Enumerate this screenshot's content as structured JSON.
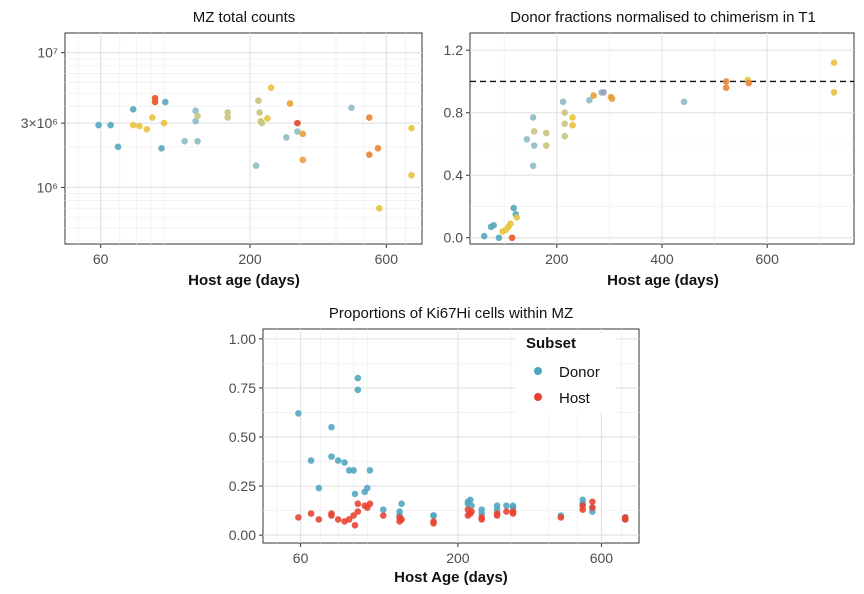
{
  "chart_data": [
    {
      "id": "mz",
      "type": "scatter",
      "title": "MZ total counts",
      "xlabel": "Host age (days)",
      "ylabel": "",
      "x_scale": "log",
      "y_scale": "log",
      "xlim": [
        45,
        800
      ],
      "ylim": [
        380000,
        14000000
      ],
      "xticks": [
        60,
        200,
        600
      ],
      "xtick_labels": [
        "60",
        "200",
        "600"
      ],
      "yticks": [
        1000000,
        3000000,
        10000000
      ],
      "ytick_labels": [
        "10⁶",
        "3×10⁶",
        "10⁷"
      ],
      "points": [
        {
          "x": 59,
          "y": 2900000,
          "c": "#5aa9bd"
        },
        {
          "x": 65,
          "y": 2900000,
          "c": "#5aa9bd"
        },
        {
          "x": 69,
          "y": 2000000,
          "c": "#5aa9bd"
        },
        {
          "x": 78,
          "y": 3800000,
          "c": "#5aa9bd"
        },
        {
          "x": 78,
          "y": 2900000,
          "c": "#e8c441"
        },
        {
          "x": 82,
          "y": 2850000,
          "c": "#e8c441"
        },
        {
          "x": 87,
          "y": 2700000,
          "c": "#e8c441"
        },
        {
          "x": 91,
          "y": 3300000,
          "c": "#e8c441"
        },
        {
          "x": 93,
          "y": 4300000,
          "c": "#e85a2e"
        },
        {
          "x": 93,
          "y": 4600000,
          "c": "#e85a2e"
        },
        {
          "x": 98,
          "y": 1950000,
          "c": "#5aa9bd"
        },
        {
          "x": 100,
          "y": 3000000,
          "c": "#e8c441"
        },
        {
          "x": 101,
          "y": 4300000,
          "c": "#5aa9bd"
        },
        {
          "x": 118,
          "y": 2200000,
          "c": "#8fbec3"
        },
        {
          "x": 129,
          "y": 3700000,
          "c": "#8fbec3"
        },
        {
          "x": 129,
          "y": 3100000,
          "c": "#8fbec3"
        },
        {
          "x": 131,
          "y": 3400000,
          "c": "#c9c681"
        },
        {
          "x": 131,
          "y": 2200000,
          "c": "#8fbec3"
        },
        {
          "x": 167,
          "y": 3600000,
          "c": "#c9c681"
        },
        {
          "x": 167,
          "y": 3300000,
          "c": "#c9c681"
        },
        {
          "x": 210,
          "y": 1450000,
          "c": "#8fbec3"
        },
        {
          "x": 214,
          "y": 4400000,
          "c": "#c9c681"
        },
        {
          "x": 216,
          "y": 3600000,
          "c": "#c9c681"
        },
        {
          "x": 218,
          "y": 3100000,
          "c": "#c9c681"
        },
        {
          "x": 220,
          "y": 3000000,
          "c": "#c9c681"
        },
        {
          "x": 230,
          "y": 3250000,
          "c": "#e8c441"
        },
        {
          "x": 237,
          "y": 5500000,
          "c": "#e8c441"
        },
        {
          "x": 268,
          "y": 2350000,
          "c": "#8fbec3"
        },
        {
          "x": 276,
          "y": 4200000,
          "c": "#e8a23a"
        },
        {
          "x": 293,
          "y": 2600000,
          "c": "#8fbec3"
        },
        {
          "x": 293,
          "y": 3000000,
          "c": "#e04b2a"
        },
        {
          "x": 306,
          "y": 1600000,
          "c": "#e8a23a"
        },
        {
          "x": 306,
          "y": 2500000,
          "c": "#e8a23a"
        },
        {
          "x": 453,
          "y": 3900000,
          "c": "#8fbec3"
        },
        {
          "x": 523,
          "y": 3300000,
          "c": "#e8883a"
        },
        {
          "x": 523,
          "y": 1750000,
          "c": "#e8883a"
        },
        {
          "x": 561,
          "y": 1950000,
          "c": "#e8883a"
        },
        {
          "x": 567,
          "y": 700000,
          "c": "#e8c441"
        },
        {
          "x": 735,
          "y": 2750000,
          "c": "#e8c441"
        },
        {
          "x": 735,
          "y": 1230000,
          "c": "#e8c441"
        }
      ]
    },
    {
      "id": "donor",
      "type": "scatter",
      "title": "Donor fractions normalised to chimerism in T1",
      "xlabel": "Host age (days)",
      "ylabel": "",
      "x_scale": "linear",
      "y_scale": "linear",
      "xlim": [
        35,
        765
      ],
      "ylim": [
        -0.04,
        1.31
      ],
      "xticks": [
        200,
        400,
        600
      ],
      "xtick_labels": [
        "200",
        "400",
        "600"
      ],
      "yticks": [
        0,
        0.4,
        0.8,
        1.2
      ],
      "ytick_labels": [
        "0.0",
        "0.4",
        "0.8",
        "1.2"
      ],
      "hline": 1.0,
      "points": [
        {
          "x": 62,
          "y": 0.01,
          "c": "#5aa9bd"
        },
        {
          "x": 75,
          "y": 0.07,
          "c": "#5aa9bd"
        },
        {
          "x": 80,
          "y": 0.08,
          "c": "#5aa9bd"
        },
        {
          "x": 90,
          "y": 0.0,
          "c": "#5aa9bd"
        },
        {
          "x": 97,
          "y": 0.04,
          "c": "#e8c441"
        },
        {
          "x": 103,
          "y": 0.05,
          "c": "#e8c441"
        },
        {
          "x": 108,
          "y": 0.07,
          "c": "#e8c441"
        },
        {
          "x": 112,
          "y": 0.09,
          "c": "#e8c441"
        },
        {
          "x": 115,
          "y": 0.0,
          "c": "#e85a2e"
        },
        {
          "x": 118,
          "y": 0.19,
          "c": "#5aa9bd"
        },
        {
          "x": 122,
          "y": 0.15,
          "c": "#5aa9bd"
        },
        {
          "x": 124,
          "y": 0.13,
          "c": "#e8c441"
        },
        {
          "x": 143,
          "y": 0.63,
          "c": "#8fbec3"
        },
        {
          "x": 155,
          "y": 0.77,
          "c": "#8fbec3"
        },
        {
          "x": 155,
          "y": 0.46,
          "c": "#8fbec3"
        },
        {
          "x": 157,
          "y": 0.68,
          "c": "#c9c681"
        },
        {
          "x": 157,
          "y": 0.59,
          "c": "#8fbec3"
        },
        {
          "x": 180,
          "y": 0.67,
          "c": "#c9c681"
        },
        {
          "x": 180,
          "y": 0.59,
          "c": "#c9c681"
        },
        {
          "x": 212,
          "y": 0.87,
          "c": "#8fbec3"
        },
        {
          "x": 215,
          "y": 0.8,
          "c": "#c9c681"
        },
        {
          "x": 215,
          "y": 0.73,
          "c": "#c9c681"
        },
        {
          "x": 215,
          "y": 0.65,
          "c": "#c9c681"
        },
        {
          "x": 230,
          "y": 0.77,
          "c": "#e8c441"
        },
        {
          "x": 230,
          "y": 0.72,
          "c": "#e8c441"
        },
        {
          "x": 262,
          "y": 0.88,
          "c": "#8fbec3"
        },
        {
          "x": 270,
          "y": 0.91,
          "c": "#e8a23a"
        },
        {
          "x": 285,
          "y": 0.93,
          "c": "#8fbec3"
        },
        {
          "x": 289,
          "y": 0.93,
          "c": "#9aa0b8"
        },
        {
          "x": 303,
          "y": 0.9,
          "c": "#e8a23a"
        },
        {
          "x": 305,
          "y": 0.89,
          "c": "#e8a23a"
        },
        {
          "x": 442,
          "y": 0.87,
          "c": "#8fbec3"
        },
        {
          "x": 522,
          "y": 1.0,
          "c": "#e8883a"
        },
        {
          "x": 522,
          "y": 0.96,
          "c": "#e8883a"
        },
        {
          "x": 563,
          "y": 1.01,
          "c": "#e8c441"
        },
        {
          "x": 565,
          "y": 0.99,
          "c": "#e8883a"
        },
        {
          "x": 727,
          "y": 1.12,
          "c": "#e8c441"
        },
        {
          "x": 727,
          "y": 0.93,
          "c": "#e8c441"
        }
      ]
    },
    {
      "id": "ki67",
      "type": "scatter",
      "title": "Proportions of Ki67Hi cells within MZ",
      "xlabel": "Host Age (days)",
      "ylabel": "",
      "x_scale": "log",
      "y_scale": "linear",
      "xlim": [
        45,
        800
      ],
      "ylim": [
        -0.04,
        1.05
      ],
      "xticks": [
        60,
        200,
        600
      ],
      "xtick_labels": [
        "60",
        "200",
        "600"
      ],
      "yticks": [
        0,
        0.25,
        0.5,
        0.75,
        1.0
      ],
      "ytick_labels": [
        "0.00",
        "0.25",
        "0.50",
        "0.75",
        "1.00"
      ],
      "legend": {
        "title": "Subset",
        "position": "top-right",
        "entries": [
          {
            "label": "Donor",
            "color": "#4fa6bf"
          },
          {
            "label": "Host",
            "color": "#e8412f"
          }
        ]
      },
      "series": [
        {
          "name": "Donor",
          "color": "#4fa6bf",
          "points": [
            [
              59,
              0.62
            ],
            [
              65,
              0.38
            ],
            [
              69,
              0.24
            ],
            [
              76,
              0.4
            ],
            [
              76,
              0.55
            ],
            [
              80,
              0.38
            ],
            [
              84,
              0.37
            ],
            [
              87,
              0.33
            ],
            [
              90,
              0.33
            ],
            [
              91,
              0.21
            ],
            [
              93,
              0.8
            ],
            [
              93,
              0.74
            ],
            [
              98,
              0.22
            ],
            [
              102,
              0.33
            ],
            [
              100,
              0.24
            ],
            [
              113,
              0.13
            ],
            [
              128,
              0.12
            ],
            [
              128,
              0.1
            ],
            [
              130,
              0.16
            ],
            [
              166,
              0.1
            ],
            [
              166,
              0.1
            ],
            [
              216,
              0.17
            ],
            [
              216,
              0.16
            ],
            [
              220,
              0.18
            ],
            [
              222,
              0.15
            ],
            [
              240,
              0.13
            ],
            [
              240,
              0.11
            ],
            [
              270,
              0.15
            ],
            [
              270,
              0.13
            ],
            [
              290,
              0.15
            ],
            [
              305,
              0.15
            ],
            [
              305,
              0.14
            ],
            [
              440,
              0.1
            ],
            [
              520,
              0.18
            ],
            [
              520,
              0.16
            ],
            [
              560,
              0.14
            ],
            [
              560,
              0.12
            ],
            [
              720,
              0.09
            ],
            [
              720,
              0.08
            ]
          ]
        },
        {
          "name": "Host",
          "color": "#e8412f",
          "points": [
            [
              59,
              0.09
            ],
            [
              65,
              0.11
            ],
            [
              69,
              0.08
            ],
            [
              76,
              0.1
            ],
            [
              76,
              0.11
            ],
            [
              80,
              0.08
            ],
            [
              84,
              0.07
            ],
            [
              87,
              0.08
            ],
            [
              90,
              0.1
            ],
            [
              91,
              0.05
            ],
            [
              93,
              0.16
            ],
            [
              93,
              0.12
            ],
            [
              98,
              0.15
            ],
            [
              100,
              0.14
            ],
            [
              102,
              0.16
            ],
            [
              113,
              0.1
            ],
            [
              128,
              0.09
            ],
            [
              128,
              0.07
            ],
            [
              130,
              0.08
            ],
            [
              166,
              0.07
            ],
            [
              166,
              0.06
            ],
            [
              216,
              0.1
            ],
            [
              216,
              0.13
            ],
            [
              220,
              0.11
            ],
            [
              222,
              0.12
            ],
            [
              240,
              0.09
            ],
            [
              240,
              0.08
            ],
            [
              270,
              0.11
            ],
            [
              270,
              0.1
            ],
            [
              290,
              0.12
            ],
            [
              305,
              0.11
            ],
            [
              305,
              0.12
            ],
            [
              440,
              0.09
            ],
            [
              520,
              0.13
            ],
            [
              520,
              0.15
            ],
            [
              560,
              0.14
            ],
            [
              560,
              0.17
            ],
            [
              720,
              0.08
            ],
            [
              720,
              0.09
            ]
          ]
        }
      ]
    }
  ]
}
